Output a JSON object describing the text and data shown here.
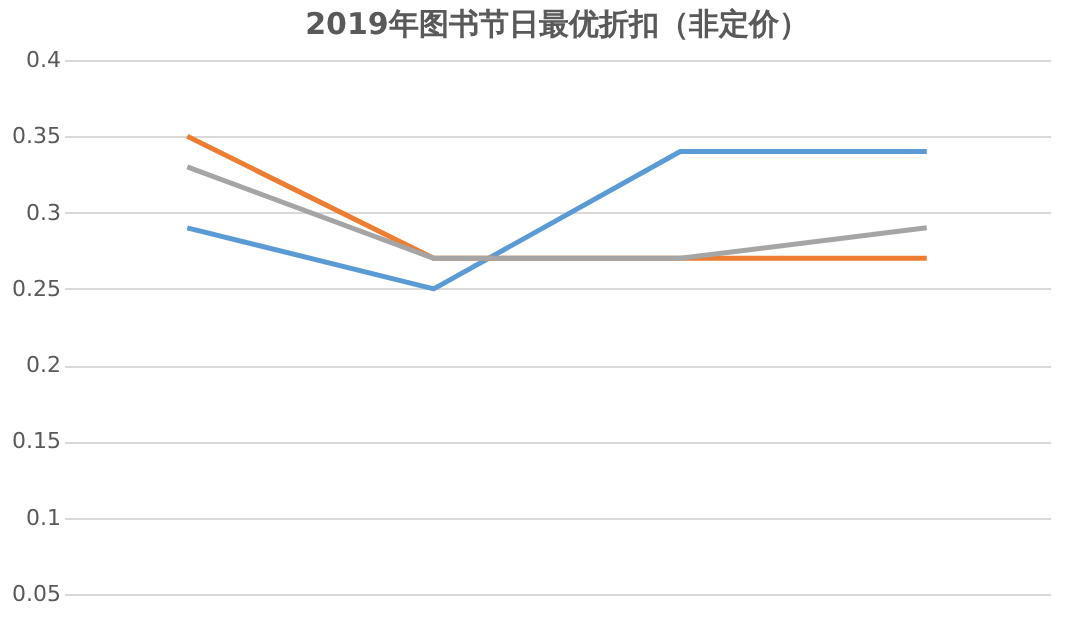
{
  "chart_data": {
    "type": "line",
    "title": "2019年图书节日最优折扣（非定价）",
    "categories": [
      null,
      null,
      null,
      null
    ],
    "series": [
      {
        "color": "#5b9bd5",
        "values": [
          0.29,
          0.25,
          0.34,
          0.34
        ]
      },
      {
        "color": "#ed7d31",
        "values": [
          0.35,
          0.27,
          0.27,
          0.27
        ]
      },
      {
        "color": "#a5a5a5",
        "values": [
          0.33,
          0.27,
          0.27,
          0.29
        ]
      }
    ],
    "ylim": [
      0.05,
      0.4
    ],
    "yticks": [
      0.05,
      0.1,
      0.15,
      0.2,
      0.25,
      0.3,
      0.35,
      0.4
    ],
    "grid": "y",
    "tick_labels": "y",
    "marker": "none",
    "line_style": "solid"
  }
}
